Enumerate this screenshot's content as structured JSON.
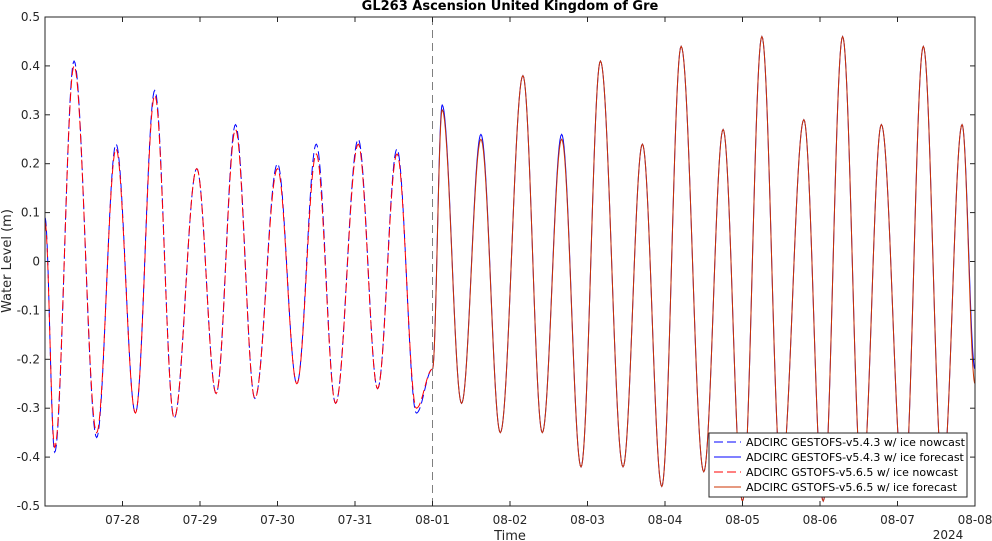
{
  "chart_data": {
    "type": "line",
    "title": "GL263 Ascension United Kingdom of Gre",
    "xlabel": "Time",
    "ylabel": "Water Level (m)",
    "x_year_label": "2024",
    "xlim": [
      "2024-07-27 00:00",
      "2024-08-08 00:00"
    ],
    "ylim": [
      -0.5,
      0.5
    ],
    "x_ticks": [
      "07-28",
      "07-29",
      "07-30",
      "07-31",
      "08-01",
      "08-02",
      "08-03",
      "08-04",
      "08-05",
      "08-06",
      "08-07",
      "08-08"
    ],
    "y_ticks": [
      "0.5",
      "0.4",
      "0.3",
      "0.2",
      "0.1",
      "0",
      "-0.1",
      "-0.2",
      "-0.3",
      "-0.4",
      "-0.5"
    ],
    "nowcast_forecast_divider": "2024-08-01 00:00",
    "grid": false,
    "legend_position": "bottom-right",
    "series": [
      {
        "name": "ADCIRC GESTOFS-v5.4.3 w/ ice nowcast",
        "color": "#0000ff",
        "style": "dashed",
        "extrema": [
          [
            "07-27 00:00",
            0.09
          ],
          [
            "07-27 03:00",
            -0.39
          ],
          [
            "07-27 09:00",
            0.41
          ],
          [
            "07-27 16:00",
            -0.36
          ],
          [
            "07-27 22:00",
            0.24
          ],
          [
            "07-28 04:00",
            -0.31
          ],
          [
            "07-28 10:00",
            0.35
          ],
          [
            "07-28 16:00",
            -0.32
          ],
          [
            "07-28 23:00",
            0.19
          ],
          [
            "07-29 05:00",
            -0.27
          ],
          [
            "07-29 11:00",
            0.28
          ],
          [
            "07-29 17:00",
            -0.28
          ],
          [
            "07-30 00:00",
            0.2
          ],
          [
            "07-30 06:00",
            -0.25
          ],
          [
            "07-30 12:00",
            0.24
          ],
          [
            "07-30 18:00",
            -0.29
          ],
          [
            "07-31 01:00",
            0.25
          ],
          [
            "07-31 07:00",
            -0.26
          ],
          [
            "07-31 13:00",
            0.23
          ],
          [
            "07-31 19:00",
            -0.31
          ],
          [
            "08-01 00:00",
            -0.22
          ]
        ]
      },
      {
        "name": "ADCIRC GESTOFS-v5.4.3 w/ ice forecast",
        "color": "#0000ff",
        "style": "solid",
        "extrema": [
          [
            "08-01 00:00",
            -0.22
          ],
          [
            "08-01 03:00",
            0.32
          ],
          [
            "08-01 09:00",
            -0.29
          ],
          [
            "08-01 15:00",
            0.26
          ],
          [
            "08-01 21:00",
            -0.35
          ],
          [
            "08-02 04:00",
            0.38
          ],
          [
            "08-02 10:00",
            -0.35
          ],
          [
            "08-02 16:00",
            0.26
          ],
          [
            "08-02 22:00",
            -0.42
          ],
          [
            "08-03 04:00",
            0.41
          ],
          [
            "08-03 11:00",
            -0.42
          ],
          [
            "08-03 17:00",
            0.24
          ],
          [
            "08-03 23:00",
            -0.46
          ],
          [
            "08-04 05:00",
            0.44
          ],
          [
            "08-04 12:00",
            -0.43
          ],
          [
            "08-04 18:00",
            0.27
          ],
          [
            "08-05 00:00",
            -0.49
          ],
          [
            "08-05 06:00",
            0.46
          ],
          [
            "08-05 12:00",
            -0.44
          ],
          [
            "08-05 19:00",
            0.29
          ],
          [
            "08-06 01:00",
            -0.49
          ],
          [
            "08-06 07:00",
            0.46
          ],
          [
            "08-06 13:00",
            -0.46
          ],
          [
            "08-06 19:00",
            0.28
          ],
          [
            "08-07 02:00",
            -0.48
          ],
          [
            "08-07 08:00",
            0.44
          ],
          [
            "08-07 14:00",
            -0.44
          ],
          [
            "08-07 20:00",
            0.28
          ],
          [
            "08-08 00:00",
            -0.22
          ]
        ]
      },
      {
        "name": "ADCIRC GSTOFS-v5.6.5 w/ ice nowcast",
        "color": "#ff0000",
        "style": "dashed",
        "extrema": [
          [
            "07-27 00:00",
            0.08
          ],
          [
            "07-27 03:00",
            -0.38
          ],
          [
            "07-27 09:00",
            0.4
          ],
          [
            "07-27 16:00",
            -0.35
          ],
          [
            "07-27 22:00",
            0.23
          ],
          [
            "07-28 04:00",
            -0.31
          ],
          [
            "07-28 10:00",
            0.34
          ],
          [
            "07-28 16:00",
            -0.32
          ],
          [
            "07-28 23:00",
            0.19
          ],
          [
            "07-29 05:00",
            -0.27
          ],
          [
            "07-29 11:00",
            0.27
          ],
          [
            "07-29 17:00",
            -0.28
          ],
          [
            "07-30 00:00",
            0.19
          ],
          [
            "07-30 06:00",
            -0.25
          ],
          [
            "07-30 12:00",
            0.22
          ],
          [
            "07-30 18:00",
            -0.29
          ],
          [
            "07-31 01:00",
            0.24
          ],
          [
            "07-31 07:00",
            -0.26
          ],
          [
            "07-31 13:00",
            0.22
          ],
          [
            "07-31 19:00",
            -0.3
          ],
          [
            "08-01 00:00",
            -0.22
          ]
        ]
      },
      {
        "name": "ADCIRC GSTOFS-v5.6.5 w/ ice forecast",
        "color": "#cc3300",
        "style": "solid",
        "extrema": [
          [
            "08-01 00:00",
            -0.22
          ],
          [
            "08-01 03:00",
            0.31
          ],
          [
            "08-01 09:00",
            -0.29
          ],
          [
            "08-01 15:00",
            0.25
          ],
          [
            "08-01 21:00",
            -0.35
          ],
          [
            "08-02 04:00",
            0.38
          ],
          [
            "08-02 10:00",
            -0.35
          ],
          [
            "08-02 16:00",
            0.25
          ],
          [
            "08-02 22:00",
            -0.42
          ],
          [
            "08-03 04:00",
            0.41
          ],
          [
            "08-03 11:00",
            -0.42
          ],
          [
            "08-03 17:00",
            0.24
          ],
          [
            "08-03 23:00",
            -0.46
          ],
          [
            "08-04 05:00",
            0.44
          ],
          [
            "08-04 12:00",
            -0.43
          ],
          [
            "08-04 18:00",
            0.27
          ],
          [
            "08-05 00:00",
            -0.49
          ],
          [
            "08-05 06:00",
            0.46
          ],
          [
            "08-05 12:00",
            -0.44
          ],
          [
            "08-05 19:00",
            0.29
          ],
          [
            "08-06 01:00",
            -0.49
          ],
          [
            "08-06 07:00",
            0.46
          ],
          [
            "08-06 13:00",
            -0.46
          ],
          [
            "08-06 19:00",
            0.28
          ],
          [
            "08-07 02:00",
            -0.48
          ],
          [
            "08-07 08:00",
            0.44
          ],
          [
            "08-07 14:00",
            -0.44
          ],
          [
            "08-07 20:00",
            0.28
          ],
          [
            "08-08 00:00",
            -0.25
          ]
        ]
      }
    ]
  }
}
